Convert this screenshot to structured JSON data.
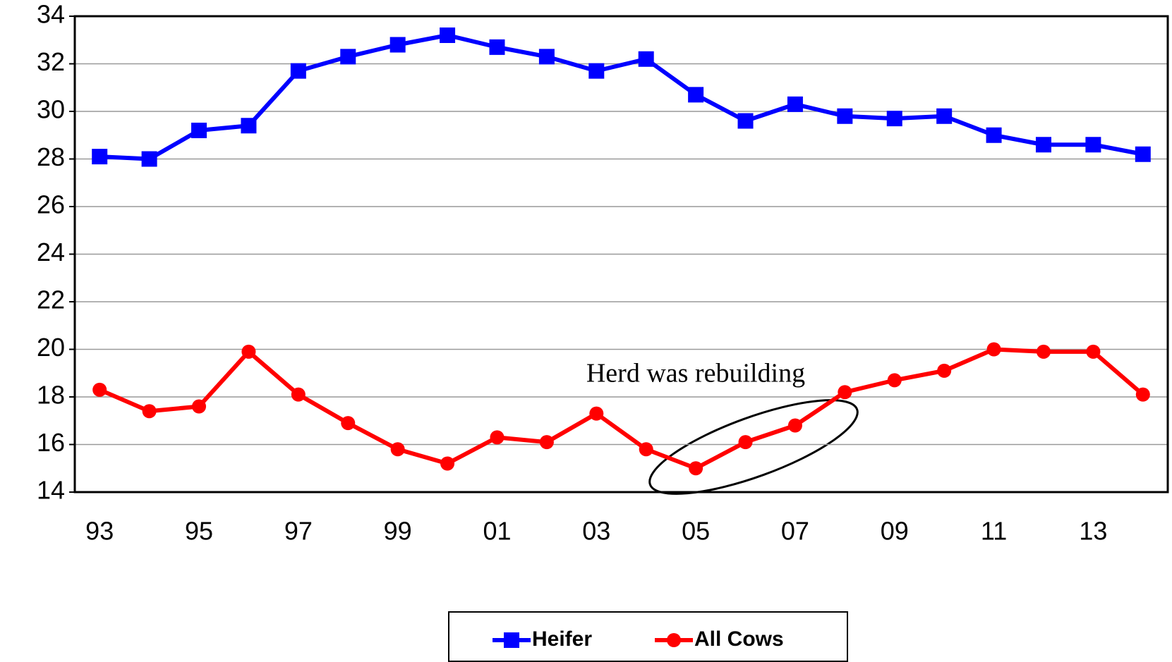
{
  "chart_data": {
    "type": "line",
    "categories": [
      "93",
      null,
      "95",
      null,
      "97",
      null,
      "99",
      null,
      "01",
      null,
      "03",
      null,
      "05",
      null,
      "07",
      null,
      "09",
      null,
      "11",
      null,
      "13",
      null
    ],
    "series": [
      {
        "name": "Heifer",
        "color": "#0000ff",
        "marker": "square",
        "values": [
          28.1,
          28.0,
          29.2,
          29.4,
          31.7,
          32.3,
          32.8,
          33.2,
          32.7,
          32.3,
          31.7,
          32.2,
          30.7,
          29.6,
          30.3,
          29.8,
          29.7,
          29.8,
          29.0,
          28.6,
          28.6,
          28.2
        ]
      },
      {
        "name": "All Cows",
        "color": "#ff0000",
        "marker": "circle",
        "values": [
          18.3,
          17.4,
          17.6,
          19.9,
          18.1,
          16.9,
          15.8,
          15.2,
          16.3,
          16.1,
          17.3,
          15.8,
          15.0,
          16.1,
          16.8,
          18.2,
          18.7,
          19.1,
          20.0,
          19.9,
          19.9,
          18.1
        ]
      }
    ],
    "annotation": "Herd was rebuilding",
    "ylim": [
      14,
      34
    ],
    "yticks": [
      14,
      16,
      18,
      20,
      22,
      24,
      26,
      28,
      30,
      32,
      34
    ],
    "grid": true,
    "legend": "bottom"
  }
}
